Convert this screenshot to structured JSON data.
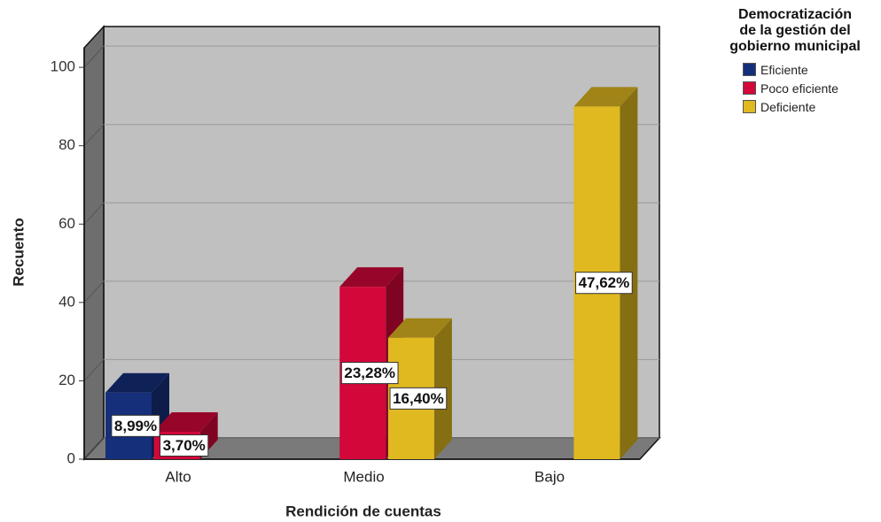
{
  "chart_data": {
    "type": "bar3d",
    "categories": [
      "Alto",
      "Medio",
      "Bajo"
    ],
    "series": [
      {
        "name": "Eficiente",
        "color": "#152f7a",
        "values": [
          17,
          null,
          null
        ],
        "value_labels": [
          "8,99%",
          null,
          null
        ]
      },
      {
        "name": "Poco eficiente",
        "color": "#d3073a",
        "values": [
          7,
          44,
          null
        ],
        "value_labels": [
          "3,70%",
          "23,28%",
          null
        ]
      },
      {
        "name": "Deficiente",
        "color": "#e0b820",
        "values": [
          null,
          31,
          90
        ],
        "value_labels": [
          null,
          "16,40%",
          "47,62%"
        ]
      }
    ],
    "ylim": [
      0,
      105
    ],
    "yticks": [
      0,
      20,
      40,
      60,
      80,
      100
    ],
    "grid": true,
    "xlabel": "Rendición de cuentas",
    "ylabel": "Recuento",
    "legend_title": "Democratización de la gestión del gobierno municipal",
    "legend": "top-right"
  }
}
